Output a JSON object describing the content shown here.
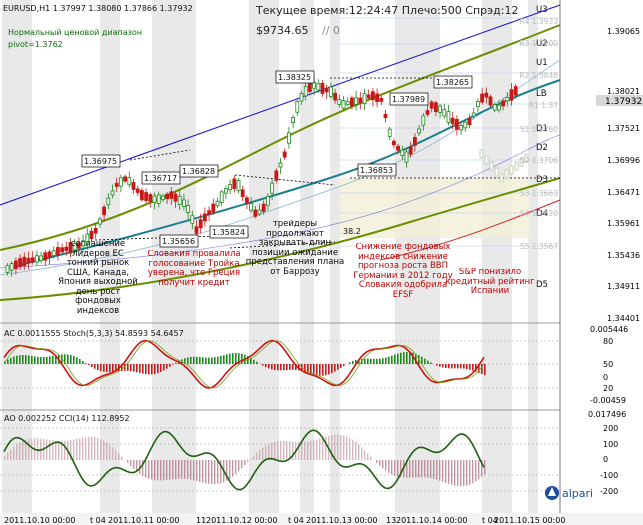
{
  "header": {
    "symbol_ohlc": "EURUSD,H1  1.37997 1.38080 1.37866 1.37932",
    "range_title": "Нормальный ценовой диапазон",
    "pivot": "pivot=1.3762",
    "time_label": "Текущее время:12:24:47 Плечо:500 Спрэд:12",
    "balance": "$9734.65",
    "balance_suffix": "// 0"
  },
  "levels": {
    "right": [
      "U3",
      "U2",
      "U1",
      "LB",
      "D1",
      "D2",
      "D3",
      "D4",
      "D5"
    ],
    "right_faded": [
      "R4 1.3933",
      "R3 1.3900",
      "R2 1.3846",
      "R1 1.37",
      "S1 1.3760",
      "S2 1.3706",
      "S3 1.3663",
      "S4 1.3620",
      "S5 1.3567"
    ]
  },
  "price_axis": {
    "labels": [
      "1.39065",
      "1.38021",
      "1.37932",
      "1.37521",
      "1.36996",
      "1.36471",
      "1.35961",
      "1.35436",
      "1.34911",
      "1.34401"
    ],
    "current": "1.37932",
    "current_color": "#1a1a1a",
    "current_bg": "#d8d8d8"
  },
  "price_marks": [
    "1.36975",
    "1.36717",
    "1.36828",
    "1.35656",
    "1.35824",
    "1.38325",
    "1.37989",
    "1.36853",
    "1.38265"
  ],
  "fib_label": "38.2",
  "annotations": {
    "green": "соглашение лидеров ЕС тонкий рынок США, Канада, Япония выходной день рост фондовых индексов",
    "red1": "Словакия провалила голосование Тройка уверена, что Греция получит кредит",
    "green2": "трейдеры продолжают закрывать длин позиции ожидание представления плана от Баррозу",
    "red2": "Снижение фондовых индексов снижение прогноза роста ВВП Германии в 2012 году Словакия одобрила EFSF",
    "red3": "S&P понизило кредитный рейтинг Испании"
  },
  "ac_panel": {
    "title": "AC 0.0011555  Stoch(5,3,3) 54.8593 54.6457",
    "axis": [
      "0.005446",
      "80",
      "50",
      "20",
      "0",
      "-0.00459"
    ]
  },
  "ao_panel": {
    "title": "AO 0.002252  CCI(14) 112.8952",
    "axis": [
      "0.017496",
      "200",
      "100",
      "0",
      "-100",
      "-200"
    ]
  },
  "time_axis": [
    "2011.10.10 00:00",
    "t 04",
    "2011.10.11 00:00",
    "11",
    "2011.10.12 00:00",
    "t 04",
    "2011.10.13 00:00",
    "13",
    "2011.10.14 00:00",
    "t 04",
    "2011.10.15 00:00"
  ],
  "logo": "alpari"
}
